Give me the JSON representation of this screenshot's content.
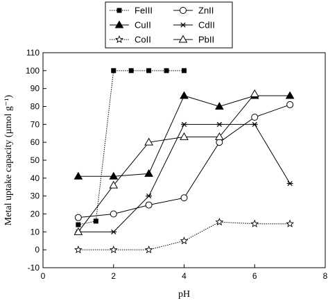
{
  "chart_data": {
    "type": "line",
    "title": "",
    "xlabel": "pH",
    "ylabel": "Metal uptake capacity (µmol g⁻¹)",
    "xlim": [
      0,
      8
    ],
    "ylim": [
      -10,
      110
    ],
    "xticks": [
      0,
      2,
      4,
      6,
      8
    ],
    "yticks": [
      -10,
      0,
      10,
      20,
      30,
      40,
      50,
      60,
      70,
      80,
      90,
      100,
      110
    ],
    "grid": false,
    "legend_position": "top-center, outside plot, 2 columns",
    "series": [
      {
        "name": "FeIII",
        "marker": "filled-square",
        "line": "dotted",
        "x": [
          1,
          1.5,
          2,
          2.5,
          3,
          3.5,
          4
        ],
        "y": [
          14,
          16,
          100,
          100,
          100,
          100,
          100
        ]
      },
      {
        "name": "ZnII",
        "marker": "open-circle",
        "line": "solid",
        "x": [
          1,
          2,
          3,
          4,
          5,
          6,
          7
        ],
        "y": [
          18,
          20,
          25,
          29,
          60,
          74,
          81
        ]
      },
      {
        "name": "CuII",
        "marker": "filled-triangle",
        "line": "solid",
        "x": [
          1,
          2,
          3,
          4,
          5,
          6,
          7
        ],
        "y": [
          41,
          41,
          42.5,
          86,
          80,
          86,
          86
        ]
      },
      {
        "name": "CdII",
        "marker": "asterisk",
        "line": "solid",
        "x": [
          1,
          2,
          3,
          4,
          5,
          6,
          7
        ],
        "y": [
          10,
          10,
          30,
          70,
          70,
          70,
          37
        ]
      },
      {
        "name": "CoII",
        "marker": "open-star",
        "line": "dotted",
        "x": [
          1,
          2,
          3,
          4,
          5,
          6,
          7
        ],
        "y": [
          0,
          0,
          0,
          5,
          15.5,
          14.5,
          14.5
        ]
      },
      {
        "name": "PbII",
        "marker": "open-triangle",
        "line": "solid",
        "x": [
          1,
          2,
          3,
          4,
          5,
          6
        ],
        "y": [
          10,
          36,
          60,
          63,
          63,
          87
        ]
      }
    ]
  }
}
